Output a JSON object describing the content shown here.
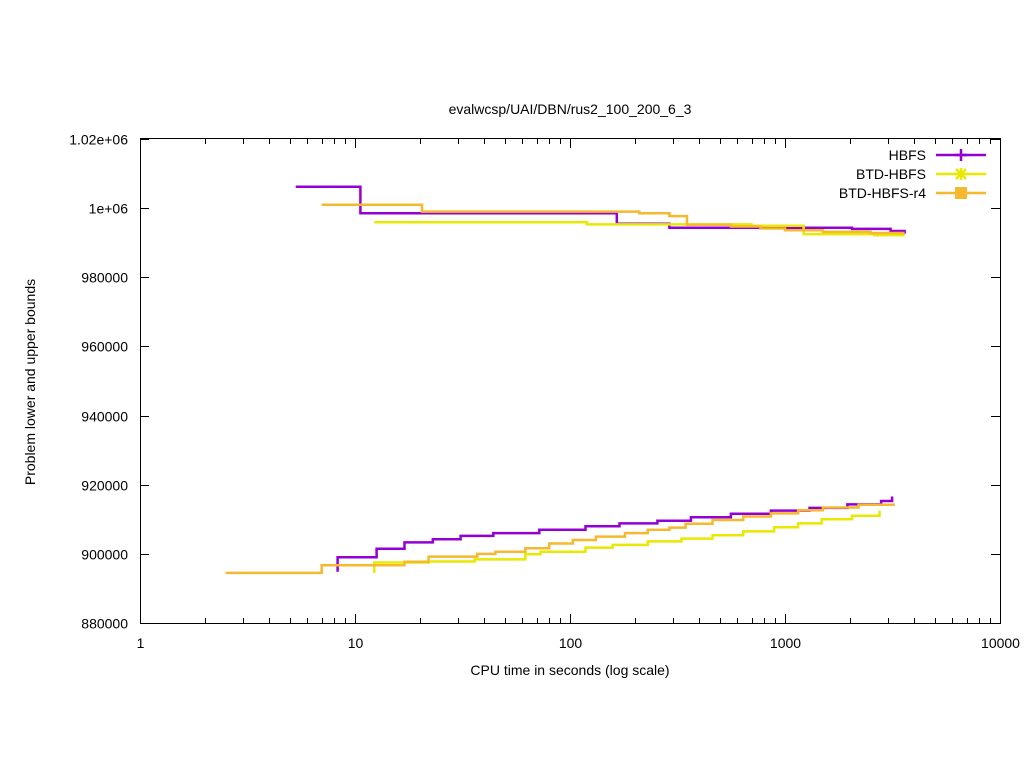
{
  "chart_data": {
    "type": "line",
    "title": "evalwcsp/UAI/DBN/rus2_100_200_6_3",
    "xlabel": "CPU time in seconds (log scale)",
    "ylabel": "Problem lower and upper bounds",
    "x_scale": "log",
    "xlim": [
      1,
      10000
    ],
    "ylim": [
      880000,
      1020000
    ],
    "x_ticks": [
      1,
      10,
      100,
      1000,
      10000
    ],
    "x_tick_labels": [
      "1",
      "10",
      "100",
      "1000",
      "10000"
    ],
    "y_ticks": [
      880000,
      900000,
      920000,
      940000,
      960000,
      980000,
      1000000,
      1020000
    ],
    "y_tick_labels": [
      "880000",
      "900000",
      "920000",
      "940000",
      "960000",
      "980000",
      "1e+06",
      "1.02e+06"
    ],
    "grid": false,
    "legend_position": "top-right",
    "series": [
      {
        "name": "HBFS",
        "color": "#9400d3",
        "marker": "plus",
        "upper": [
          [
            5.3,
            1006200
          ],
          [
            10.6,
            1006200
          ],
          [
            10.6,
            998500
          ],
          [
            165,
            998500
          ],
          [
            165,
            995500
          ],
          [
            290,
            995500
          ],
          [
            290,
            994300
          ],
          [
            1080,
            994300
          ],
          [
            1080,
            994300
          ],
          [
            2050,
            994300
          ],
          [
            2050,
            994000
          ],
          [
            3100,
            994000
          ],
          [
            3100,
            993400
          ],
          [
            3600,
            993400
          ],
          [
            3600,
            992600
          ]
        ],
        "lower": [
          [
            8.3,
            894800
          ],
          [
            8.3,
            899000
          ],
          [
            12.6,
            899000
          ],
          [
            12.6,
            901500
          ],
          [
            17,
            901500
          ],
          [
            17,
            903300
          ],
          [
            23,
            903300
          ],
          [
            23,
            904200
          ],
          [
            31,
            904200
          ],
          [
            31,
            905200
          ],
          [
            44,
            905200
          ],
          [
            44,
            906000
          ],
          [
            72,
            906000
          ],
          [
            72,
            907000
          ],
          [
            118,
            907000
          ],
          [
            118,
            908000
          ],
          [
            170,
            908000
          ],
          [
            170,
            908800
          ],
          [
            255,
            908800
          ],
          [
            255,
            909600
          ],
          [
            365,
            909600
          ],
          [
            365,
            910600
          ],
          [
            560,
            910600
          ],
          [
            560,
            911600
          ],
          [
            860,
            911600
          ],
          [
            860,
            912500
          ],
          [
            1300,
            912500
          ],
          [
            1300,
            913300
          ],
          [
            1950,
            913300
          ],
          [
            1950,
            914300
          ],
          [
            2800,
            914300
          ],
          [
            2800,
            915300
          ],
          [
            3150,
            915300
          ],
          [
            3150,
            916600
          ]
        ]
      },
      {
        "name": "BTD-HBFS",
        "color": "#e8e800",
        "marker": "star",
        "upper": [
          [
            12.3,
            995900
          ],
          [
            120,
            995900
          ],
          [
            120,
            995300
          ],
          [
            700,
            995300
          ],
          [
            700,
            994900
          ],
          [
            1220,
            994900
          ],
          [
            1220,
            992500
          ],
          [
            2600,
            992500
          ],
          [
            2600,
            992200
          ],
          [
            3600,
            992200
          ]
        ],
        "lower": [
          [
            12.3,
            894500
          ],
          [
            12.3,
            897500
          ],
          [
            22,
            897500
          ],
          [
            22,
            897800
          ],
          [
            36,
            897800
          ],
          [
            36,
            898400
          ],
          [
            62,
            898400
          ],
          [
            62,
            899900
          ],
          [
            73,
            899900
          ],
          [
            73,
            900600
          ],
          [
            118,
            900600
          ],
          [
            118,
            901800
          ],
          [
            158,
            901800
          ],
          [
            158,
            902600
          ],
          [
            230,
            902600
          ],
          [
            230,
            903600
          ],
          [
            330,
            903600
          ],
          [
            330,
            904400
          ],
          [
            460,
            904400
          ],
          [
            460,
            905400
          ],
          [
            640,
            905400
          ],
          [
            640,
            906500
          ],
          [
            890,
            906500
          ],
          [
            890,
            907700
          ],
          [
            1150,
            907700
          ],
          [
            1150,
            908800
          ],
          [
            1480,
            908800
          ],
          [
            1480,
            910000
          ],
          [
            2050,
            910000
          ],
          [
            2050,
            911000
          ],
          [
            2750,
            911000
          ],
          [
            2750,
            912500
          ]
        ]
      },
      {
        "name": "BTD-HBFS-r4",
        "color": "#f5b82e",
        "marker": "square",
        "upper": [
          [
            7,
            1001000
          ],
          [
            20.5,
            1001000
          ],
          [
            20.5,
            999000
          ],
          [
            210,
            999000
          ],
          [
            210,
            998500
          ],
          [
            290,
            998500
          ],
          [
            290,
            997700
          ],
          [
            350,
            997700
          ],
          [
            350,
            995200
          ],
          [
            560,
            995200
          ],
          [
            560,
            994700
          ],
          [
            770,
            994700
          ],
          [
            770,
            994100
          ],
          [
            1000,
            994100
          ],
          [
            1000,
            993600
          ],
          [
            1500,
            993600
          ],
          [
            1500,
            993200
          ],
          [
            2500,
            993200
          ],
          [
            2500,
            992800
          ],
          [
            3600,
            992800
          ]
        ],
        "lower": [
          [
            2.5,
            894500
          ],
          [
            7,
            894500
          ],
          [
            7,
            896700
          ],
          [
            17,
            896700
          ],
          [
            17,
            897700
          ],
          [
            22,
            897700
          ],
          [
            22,
            899200
          ],
          [
            37,
            899200
          ],
          [
            37,
            900000
          ],
          [
            45,
            900000
          ],
          [
            45,
            900600
          ],
          [
            62,
            900600
          ],
          [
            62,
            901600
          ],
          [
            80,
            901600
          ],
          [
            80,
            903000
          ],
          [
            103,
            903000
          ],
          [
            103,
            904000
          ],
          [
            132,
            904000
          ],
          [
            132,
            905000
          ],
          [
            180,
            905000
          ],
          [
            180,
            906000
          ],
          [
            230,
            906000
          ],
          [
            230,
            907000
          ],
          [
            290,
            907000
          ],
          [
            290,
            907600
          ],
          [
            345,
            907600
          ],
          [
            345,
            908700
          ],
          [
            460,
            908700
          ],
          [
            460,
            909800
          ],
          [
            640,
            909800
          ],
          [
            640,
            910800
          ],
          [
            860,
            910800
          ],
          [
            860,
            911700
          ],
          [
            1150,
            911700
          ],
          [
            1150,
            912600
          ],
          [
            1500,
            912600
          ],
          [
            1500,
            913400
          ],
          [
            2200,
            913400
          ],
          [
            2200,
            914200
          ],
          [
            3200,
            914200
          ],
          [
            3200,
            914600
          ]
        ]
      }
    ]
  }
}
